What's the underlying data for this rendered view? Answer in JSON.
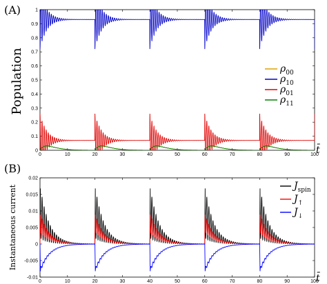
{
  "chart_data": [
    {
      "panel_label": "(A)",
      "type": "line",
      "ylabel": "Population",
      "xlabel": "t̄",
      "xlim": [
        0,
        100
      ],
      "ylim": [
        0,
        1
      ],
      "xticks": [
        "0",
        "10",
        "20",
        "30",
        "40",
        "50",
        "60",
        "70",
        "80",
        "90",
        "100"
      ],
      "yticks": [
        "0",
        "0.1",
        "0.2",
        "0.3",
        "0.4",
        "0.5",
        "0.6",
        "0.7",
        "0.8",
        "0.9",
        "1"
      ],
      "pulse_times": [
        0,
        20,
        40,
        60,
        80
      ],
      "legend_position": "right",
      "series": [
        {
          "name": "ρ",
          "sub": "00",
          "color": "#e0a000",
          "baseline": 0.0,
          "peak": 0.03,
          "kind": "hump"
        },
        {
          "name": "ρ",
          "sub": "10",
          "color": "#0000c8",
          "baseline": 0.93,
          "start": 0.72,
          "kind": "damped"
        },
        {
          "name": "ρ",
          "sub": "01",
          "color": "#e00000",
          "baseline": 0.07,
          "start": 0.26,
          "kind": "damped"
        },
        {
          "name": "ρ",
          "sub": "11",
          "color": "#008000",
          "baseline": 0.0,
          "peak": 0.03,
          "kind": "hump"
        }
      ]
    },
    {
      "panel_label": "(B)",
      "type": "line",
      "ylabel": "Instantaneous current",
      "xlabel": "t̄",
      "xlim": [
        0,
        100
      ],
      "ylim": [
        -0.01,
        0.02
      ],
      "xticks": [
        "0",
        "10",
        "20",
        "30",
        "40",
        "50",
        "60",
        "70",
        "80",
        "90",
        "100"
      ],
      "yticks": [
        "-0.01",
        "-0.005",
        "0",
        "0.005",
        "0.01",
        "0.015",
        "0.02"
      ],
      "pulse_times": [
        0,
        20,
        40,
        60,
        80
      ],
      "legend_position": "top-right",
      "series": [
        {
          "name": "J",
          "sub": "spin",
          "color": "#000000",
          "peak": 0.018,
          "kind": "osc-pos"
        },
        {
          "name": "J",
          "sub": "↑",
          "color": "#ff0000",
          "peak": 0.0095,
          "kind": "osc-pos-mild"
        },
        {
          "name": "J",
          "sub": "↓",
          "color": "#0000ff",
          "peak": -0.0088,
          "kind": "neg"
        }
      ]
    }
  ]
}
